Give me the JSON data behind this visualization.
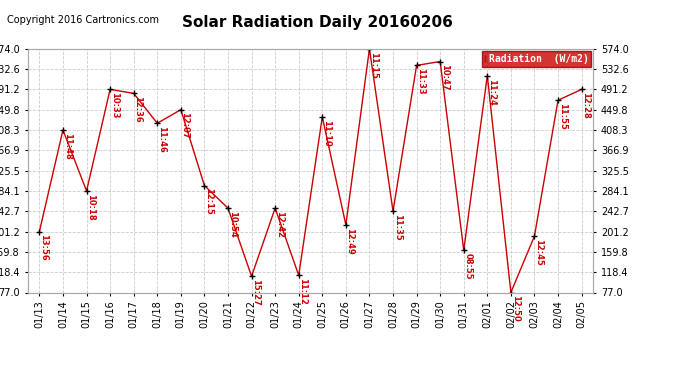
{
  "title": "Solar Radiation Daily 20160206",
  "copyright": "Copyright 2016 Cartronics.com",
  "background_color": "#ffffff",
  "plot_bg_color": "#ffffff",
  "grid_color": "#cccccc",
  "line_color": "#cc0000",
  "marker_color": "#000000",
  "label_color": "#cc0000",
  "legend_bg": "#cc0000",
  "legend_text_color": "#ffffff",
  "dates": [
    "01/13",
    "01/14",
    "01/15",
    "01/16",
    "01/17",
    "01/18",
    "01/19",
    "01/20",
    "01/21",
    "01/22",
    "01/23",
    "01/24",
    "01/25",
    "01/26",
    "01/27",
    "01/28",
    "01/29",
    "01/30",
    "01/31",
    "02/01",
    "02/02",
    "02/03",
    "02/04",
    "02/05"
  ],
  "values": [
    201.2,
    408.3,
    284.1,
    491.2,
    483.0,
    422.0,
    449.8,
    295.0,
    249.0,
    110.0,
    249.0,
    112.0,
    435.0,
    215.0,
    574.0,
    242.7,
    540.0,
    548.0,
    163.0,
    519.0,
    77.0,
    192.0,
    469.0,
    491.2
  ],
  "point_labels": [
    "13:56",
    "11:48",
    "10:18",
    "10:33",
    "12:36",
    "11:46",
    "12:07",
    "12:15",
    "10:54",
    "15:27",
    "12:42",
    "11:12",
    "11:10",
    "12:49",
    "11:15",
    "11:35",
    "11:33",
    "10:47",
    "08:55",
    "11:24",
    "12:50",
    "12:45",
    "11:55",
    "12:28"
  ],
  "ylim_min": 77.0,
  "ylim_max": 574.0,
  "yticks": [
    77.0,
    118.4,
    159.8,
    201.2,
    242.7,
    284.1,
    325.5,
    366.9,
    408.3,
    449.8,
    491.2,
    532.6,
    574.0
  ],
  "title_fontsize": 11,
  "tick_fontsize": 7,
  "label_fontsize": 6,
  "copyright_fontsize": 7
}
